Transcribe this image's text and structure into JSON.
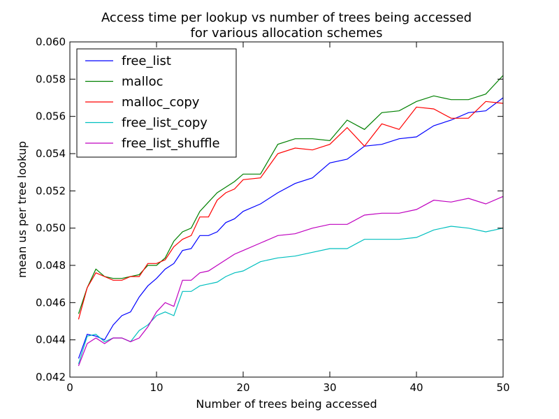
{
  "chart_data": {
    "type": "line",
    "title_line1": "Access time per lookup vs number of trees being accessed",
    "title_line2": "for various allocation schemes",
    "xlabel": "Number of trees being accessed",
    "ylabel": "mean us per tree lookup",
    "xlim": [
      0,
      50
    ],
    "ylim": [
      0.042,
      0.06
    ],
    "xticks": [
      0,
      10,
      20,
      30,
      40,
      50
    ],
    "yticks": [
      0.042,
      0.044,
      0.046,
      0.048,
      0.05,
      0.052,
      0.054,
      0.056,
      0.058,
      0.06
    ],
    "xtick_labels": [
      "0",
      "10",
      "20",
      "30",
      "40",
      "50"
    ],
    "ytick_labels": [
      "0.042",
      "0.044",
      "0.046",
      "0.048",
      "0.050",
      "0.052",
      "0.054",
      "0.056",
      "0.058",
      "0.060"
    ],
    "grid": false,
    "legend_position": "top-left",
    "x": [
      1,
      2,
      3,
      4,
      5,
      6,
      7,
      8,
      9,
      10,
      11,
      12,
      13,
      14,
      15,
      16,
      17,
      18,
      19,
      20,
      22,
      24,
      26,
      28,
      30,
      32,
      34,
      36,
      38,
      40,
      42,
      44,
      46,
      48,
      50
    ],
    "series": [
      {
        "name": "free_list",
        "color": "#0000ff",
        "values": [
          0.043,
          0.0443,
          0.0442,
          0.044,
          0.0448,
          0.0453,
          0.0455,
          0.0463,
          0.0469,
          0.0473,
          0.0478,
          0.0481,
          0.0488,
          0.0489,
          0.0496,
          0.0496,
          0.0498,
          0.0503,
          0.0505,
          0.0509,
          0.0513,
          0.0519,
          0.0524,
          0.0527,
          0.0535,
          0.0537,
          0.0544,
          0.0545,
          0.0548,
          0.0549,
          0.0555,
          0.0558,
          0.0562,
          0.0563,
          0.057
        ]
      },
      {
        "name": "malloc",
        "color": "#008000",
        "values": [
          0.0454,
          0.0468,
          0.0478,
          0.0474,
          0.0473,
          0.0473,
          0.0474,
          0.0475,
          0.048,
          0.048,
          0.0484,
          0.0493,
          0.0498,
          0.05,
          0.0509,
          0.0514,
          0.0519,
          0.0522,
          0.0525,
          0.0529,
          0.0529,
          0.0545,
          0.0548,
          0.0548,
          0.0547,
          0.0558,
          0.0553,
          0.0562,
          0.0563,
          0.0568,
          0.0571,
          0.0569,
          0.0569,
          0.0572,
          0.0582
        ]
      },
      {
        "name": "malloc_copy",
        "color": "#ff0000",
        "values": [
          0.0451,
          0.0468,
          0.0476,
          0.0474,
          0.0472,
          0.0472,
          0.0474,
          0.0474,
          0.0481,
          0.0481,
          0.0483,
          0.049,
          0.0494,
          0.0496,
          0.0506,
          0.0506,
          0.0515,
          0.0519,
          0.0521,
          0.0526,
          0.0527,
          0.054,
          0.0543,
          0.0542,
          0.0545,
          0.0554,
          0.0544,
          0.0556,
          0.0553,
          0.0565,
          0.0564,
          0.0559,
          0.0559,
          0.0568,
          0.0567
        ]
      },
      {
        "name": "free_list_copy",
        "color": "#00bfbf",
        "values": [
          0.0427,
          0.0442,
          0.0443,
          0.0439,
          0.0441,
          0.0441,
          0.0439,
          0.0445,
          0.0448,
          0.0453,
          0.0455,
          0.0453,
          0.0466,
          0.0466,
          0.0469,
          0.047,
          0.0471,
          0.0474,
          0.0476,
          0.0477,
          0.0482,
          0.0484,
          0.0485,
          0.0487,
          0.0489,
          0.0489,
          0.0494,
          0.0494,
          0.0494,
          0.0495,
          0.0499,
          0.0501,
          0.05,
          0.0498,
          0.05
        ]
      },
      {
        "name": "free_list_shuffle",
        "color": "#bf00bf",
        "values": [
          0.0426,
          0.0438,
          0.0441,
          0.0438,
          0.0441,
          0.0441,
          0.0439,
          0.0441,
          0.0447,
          0.0455,
          0.046,
          0.0458,
          0.0472,
          0.0472,
          0.0476,
          0.0477,
          0.048,
          0.0483,
          0.0486,
          0.0488,
          0.0492,
          0.0496,
          0.0497,
          0.05,
          0.0502,
          0.0502,
          0.0507,
          0.0508,
          0.0508,
          0.051,
          0.0515,
          0.0514,
          0.0516,
          0.0513,
          0.0517
        ]
      }
    ]
  }
}
